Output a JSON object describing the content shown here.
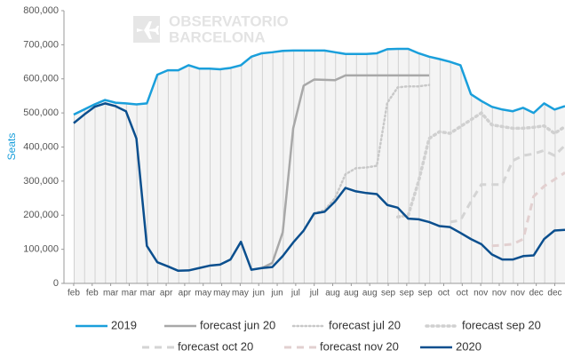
{
  "chart_data": {
    "type": "line",
    "ylabel": "Seats",
    "watermark": [
      "OBSERVATORIO",
      "BARCELONA"
    ],
    "x": [
      0,
      1,
      2,
      3,
      4,
      5,
      6,
      7,
      8,
      9,
      10,
      11,
      12,
      13,
      14,
      15,
      16,
      17,
      18,
      19,
      20,
      21,
      22,
      23,
      24,
      25,
      26,
      27,
      28,
      29,
      30,
      31,
      32,
      33,
      34,
      35,
      36,
      37,
      38,
      39,
      40,
      41,
      42,
      43,
      44,
      45,
      46,
      47
    ],
    "xlim": [
      -0.93,
      47
    ],
    "xticks": [
      {
        "value": 0,
        "label": "feb"
      },
      {
        "value": 1.77,
        "label": "feb"
      },
      {
        "value": 3.54,
        "label": "mar"
      },
      {
        "value": 5.31,
        "label": "mar"
      },
      {
        "value": 7.08,
        "label": "mar"
      },
      {
        "value": 8.85,
        "label": "apr"
      },
      {
        "value": 10.62,
        "label": "apr"
      },
      {
        "value": 12.39,
        "label": "may"
      },
      {
        "value": 14.16,
        "label": "may"
      },
      {
        "value": 15.93,
        "label": "may"
      },
      {
        "value": 17.7,
        "label": "jun"
      },
      {
        "value": 19.47,
        "label": "jun"
      },
      {
        "value": 21.24,
        "label": "jul"
      },
      {
        "value": 23.01,
        "label": "jul"
      },
      {
        "value": 24.78,
        "label": "aug"
      },
      {
        "value": 26.55,
        "label": "aug"
      },
      {
        "value": 28.32,
        "label": "aug"
      },
      {
        "value": 30.09,
        "label": "sep"
      },
      {
        "value": 31.86,
        "label": "sep"
      },
      {
        "value": 33.63,
        "label": "sep"
      },
      {
        "value": 35.4,
        "label": "oct"
      },
      {
        "value": 37.17,
        "label": "oct"
      },
      {
        "value": 38.94,
        "label": "nov"
      },
      {
        "value": 40.71,
        "label": "nov"
      },
      {
        "value": 42.48,
        "label": "nov"
      },
      {
        "value": 44.25,
        "label": "dec"
      },
      {
        "value": 46.02,
        "label": "dec"
      }
    ],
    "ylim": [
      0,
      800000
    ],
    "yticks": [
      0,
      {
        "value": 100000,
        "label": "100,000"
      },
      {
        "value": 200000,
        "label": "200,000"
      },
      {
        "value": 300000,
        "label": "300,000"
      },
      {
        "value": 400000,
        "label": "400,000"
      },
      {
        "value": 500000,
        "label": "500,000"
      },
      {
        "value": 600000,
        "label": "600,000"
      },
      {
        "value": 700000,
        "label": "700,000"
      },
      {
        "value": 800000,
        "label": "800,000"
      }
    ],
    "area_under": "2019",
    "series": [
      {
        "name": "2019",
        "color": "#1a9fdb",
        "dash": "solid",
        "width": 2.5,
        "values": [
          495000,
          510000,
          525000,
          538000,
          530000,
          528000,
          525000,
          528000,
          612000,
          625000,
          625000,
          640000,
          630000,
          630000,
          628000,
          632000,
          640000,
          665000,
          675000,
          678000,
          682000,
          683000,
          683000,
          683000,
          683000,
          678000,
          673000,
          673000,
          673000,
          675000,
          687000,
          688000,
          688000,
          675000,
          665000,
          658000,
          650000,
          640000,
          555000,
          535000,
          518000,
          510000,
          505000,
          515000,
          500000,
          528000,
          510000,
          520000
        ]
      },
      {
        "name": "forecast jun 20",
        "color": "#a8a8a8",
        "dash": "solid",
        "width": 2.5,
        "values": [
          null,
          null,
          null,
          null,
          null,
          null,
          null,
          null,
          null,
          null,
          null,
          null,
          null,
          null,
          null,
          null,
          null,
          null,
          45000,
          60000,
          150000,
          455000,
          580000,
          598000,
          597000,
          596000,
          610000,
          610000,
          610000,
          610000,
          610000,
          610000,
          610000,
          610000,
          610000,
          null,
          null,
          null,
          null,
          null,
          null,
          null,
          null,
          null,
          null,
          null,
          null,
          null
        ]
      },
      {
        "name": "forecast jul 20",
        "color": "#c8c8c8",
        "dash": "dotted",
        "width": 2.5,
        "values": [
          null,
          null,
          null,
          null,
          null,
          null,
          null,
          null,
          null,
          null,
          null,
          null,
          null,
          null,
          null,
          null,
          null,
          null,
          null,
          null,
          null,
          null,
          null,
          205000,
          215000,
          250000,
          320000,
          338000,
          340000,
          345000,
          530000,
          575000,
          578000,
          578000,
          582000,
          null,
          null,
          null,
          null,
          null,
          null,
          null,
          null,
          null,
          null,
          null,
          null,
          null
        ]
      },
      {
        "name": "forecast sep 20",
        "color": "#d0d0d0",
        "dash": "dotted-thick",
        "width": 3.5,
        "values": [
          null,
          null,
          null,
          null,
          null,
          null,
          null,
          null,
          null,
          null,
          null,
          null,
          null,
          null,
          null,
          null,
          null,
          null,
          null,
          null,
          null,
          null,
          null,
          null,
          null,
          null,
          null,
          null,
          null,
          null,
          null,
          195000,
          200000,
          300000,
          425000,
          445000,
          440000,
          460000,
          480000,
          500000,
          465000,
          460000,
          455000,
          455000,
          458000,
          462000,
          440000,
          460000
        ]
      },
      {
        "name": "forecast oct 20",
        "color": "#d4d4d4",
        "dash": "dashed",
        "width": 3,
        "values": [
          null,
          null,
          null,
          null,
          null,
          null,
          null,
          null,
          null,
          null,
          null,
          null,
          null,
          null,
          null,
          null,
          null,
          null,
          null,
          null,
          null,
          null,
          null,
          null,
          null,
          null,
          null,
          null,
          null,
          null,
          null,
          null,
          null,
          null,
          null,
          null,
          180000,
          185000,
          240000,
          290000,
          290000,
          290000,
          360000,
          375000,
          380000,
          390000,
          375000,
          405000
        ]
      },
      {
        "name": "forecast nov 20",
        "color": "#e2d0d0",
        "dash": "dashed",
        "width": 3,
        "values": [
          null,
          null,
          null,
          null,
          null,
          null,
          null,
          null,
          null,
          null,
          null,
          null,
          null,
          null,
          null,
          null,
          null,
          null,
          null,
          null,
          null,
          null,
          null,
          null,
          null,
          null,
          null,
          null,
          null,
          null,
          null,
          null,
          null,
          null,
          null,
          null,
          null,
          null,
          null,
          null,
          110000,
          112000,
          115000,
          130000,
          255000,
          285000,
          305000,
          325000
        ]
      },
      {
        "name": "2020",
        "color": "#0b4f8e",
        "dash": "solid",
        "width": 2.5,
        "values": [
          470000,
          495000,
          518000,
          528000,
          520000,
          505000,
          425000,
          110000,
          62000,
          50000,
          37000,
          38000,
          45000,
          52000,
          55000,
          70000,
          122000,
          40000,
          45000,
          48000,
          80000,
          120000,
          155000,
          205000,
          210000,
          240000,
          280000,
          270000,
          265000,
          262000,
          230000,
          222000,
          190000,
          188000,
          180000,
          168000,
          165000,
          148000,
          130000,
          115000,
          85000,
          70000,
          70000,
          80000,
          82000,
          130000,
          155000,
          157000
        ]
      }
    ]
  }
}
